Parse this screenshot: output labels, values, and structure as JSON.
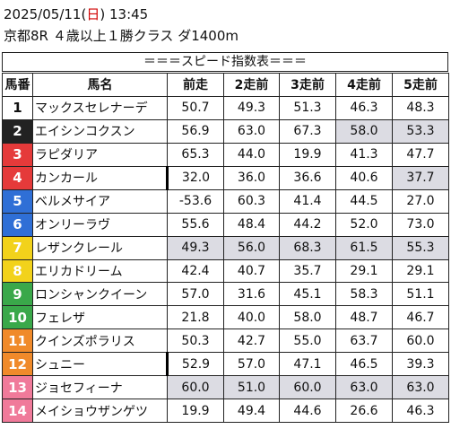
{
  "header": {
    "date": "2025/05/11",
    "weekday_open": "(",
    "weekday": "日",
    "weekday_close": ")",
    "time": "13:45",
    "race_info": "京都8R ４歳以上１勝クラス ダ1400m"
  },
  "table_title": "＝＝＝スピード指数表＝＝＝",
  "columns": [
    "馬番",
    "馬名",
    "前走",
    "2走前",
    "3走前",
    "4走前",
    "5走前"
  ],
  "colors": {
    "frame1": "#ffffff",
    "frame2": "#222222",
    "frame3": "#e53a3a",
    "frame4": "#2f6fd6",
    "frame5": "#f2d21b",
    "frame6": "#3aa84a",
    "frame7": "#f08a2a",
    "frame8": "#f07a9a",
    "highlight": "#dcdce3"
  },
  "rows": [
    {
      "num": "1",
      "name": "マックスセレナーデ",
      "v": [
        "50.7",
        "49.3",
        "51.3",
        "46.3",
        "48.3"
      ],
      "frame": 1,
      "hl": [],
      "mark": false
    },
    {
      "num": "2",
      "name": "エイシンコクスン",
      "v": [
        "56.9",
        "63.0",
        "67.3",
        "58.0",
        "53.3"
      ],
      "frame": 2,
      "hl": [
        3,
        4
      ],
      "mark": false
    },
    {
      "num": "3",
      "name": "ラピダリア",
      "v": [
        "65.3",
        "44.0",
        "19.9",
        "41.3",
        "47.7"
      ],
      "frame": 3,
      "hl": [],
      "mark": false
    },
    {
      "num": "4",
      "name": "カンカール",
      "v": [
        "32.0",
        "36.0",
        "36.6",
        "40.6",
        "37.7"
      ],
      "frame": 4,
      "hl": [
        4
      ],
      "mark": true
    },
    {
      "num": "5",
      "name": "ベルメサイア",
      "v": [
        "-53.6",
        "60.3",
        "41.4",
        "44.5",
        "27.0"
      ],
      "frame": 5,
      "hl": [],
      "mark": false
    },
    {
      "num": "6",
      "name": "オンリーラヴ",
      "v": [
        "55.6",
        "48.4",
        "44.2",
        "52.0",
        "73.0"
      ],
      "frame": 6,
      "hl": [],
      "mark": false
    },
    {
      "num": "7",
      "name": "レザンクレール",
      "v": [
        "49.3",
        "56.0",
        "68.3",
        "61.5",
        "55.3"
      ],
      "frame": 7,
      "hl": [
        0,
        1,
        2,
        3,
        4
      ],
      "mark": false
    },
    {
      "num": "8",
      "name": "エリカドリーム",
      "v": [
        "42.4",
        "40.7",
        "35.7",
        "29.1",
        "29.1"
      ],
      "frame": 8,
      "hl": [],
      "mark": false
    },
    {
      "num": "9",
      "name": "ロンシャンクイーン",
      "v": [
        "57.0",
        "31.6",
        "45.1",
        "58.3",
        "51.1"
      ],
      "frame": 9,
      "hl": [],
      "mark": false
    },
    {
      "num": "10",
      "name": "フェレザ",
      "v": [
        "21.8",
        "40.0",
        "58.0",
        "48.7",
        "46.7"
      ],
      "frame": 10,
      "hl": [],
      "mark": false
    },
    {
      "num": "11",
      "name": "クインズポラリス",
      "v": [
        "50.3",
        "42.7",
        "55.0",
        "63.7",
        "60.0"
      ],
      "frame": 11,
      "hl": [],
      "mark": false
    },
    {
      "num": "12",
      "name": "シュニー",
      "v": [
        "52.9",
        "57.0",
        "47.1",
        "46.5",
        "39.3"
      ],
      "frame": 12,
      "hl": [],
      "mark": true
    },
    {
      "num": "13",
      "name": "ジョセフィーナ",
      "v": [
        "60.0",
        "51.0",
        "60.0",
        "63.0",
        "63.0"
      ],
      "frame": 13,
      "hl": [
        0,
        1,
        2,
        3,
        4
      ],
      "mark": false
    },
    {
      "num": "14",
      "name": "メイショウザンゲツ",
      "v": [
        "19.9",
        "49.4",
        "44.6",
        "26.6",
        "46.3"
      ],
      "frame": 14,
      "hl": [],
      "mark": false
    }
  ]
}
